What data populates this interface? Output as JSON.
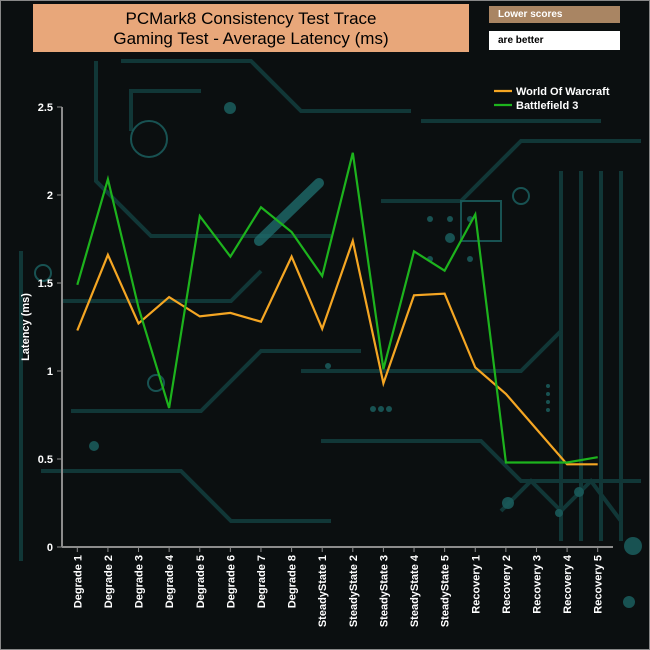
{
  "chart_data": {
    "type": "line",
    "title_line1": "PCMark8 Consistency Test Trace",
    "title_line2": "Gaming Test -  Average Latency (ms)",
    "note_line1": "Lower scores",
    "note_line2": "are better",
    "ylabel": "Latency (ms)",
    "xlabel": "",
    "ylim": [
      0,
      2.5
    ],
    "yticks": [
      "0",
      "0.5",
      "1",
      "1.5",
      "2",
      "2.5"
    ],
    "ytick_values": [
      0,
      0.5,
      1,
      1.5,
      2,
      2.5
    ],
    "categories": [
      "Degrade 1",
      "Degrade 2",
      "Degrade 3",
      "Degrade 4",
      "Degrade 5",
      "Degrade 6",
      "Degrade 7",
      "Degrade 8",
      "SteadyState 1",
      "SteadyState 2",
      "SteadyState 3",
      "SteadyState 4",
      "SteadyState 5",
      "Recovery 1",
      "Recovery 2",
      "Recovery 3",
      "Recovery 4",
      "Recovery 5"
    ],
    "legend_position": "top-right",
    "series": [
      {
        "name": "World Of Warcraft",
        "color": "#f5a623",
        "values": [
          1.23,
          1.66,
          1.27,
          1.42,
          1.31,
          1.33,
          1.28,
          1.65,
          1.24,
          1.74,
          0.93,
          1.43,
          1.44,
          1.02,
          0.87,
          0.67,
          0.47,
          0.47
        ]
      },
      {
        "name": "Battlefield 3",
        "color": "#1db31d",
        "values": [
          1.49,
          2.09,
          1.36,
          0.79,
          1.88,
          1.65,
          1.93,
          1.79,
          1.54,
          2.24,
          1.01,
          1.68,
          1.57,
          1.89,
          0.48,
          0.48,
          0.48,
          0.51
        ]
      }
    ]
  }
}
